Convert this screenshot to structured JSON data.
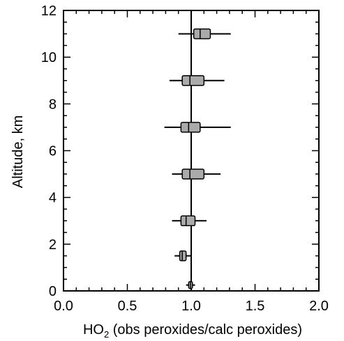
{
  "chart_data": {
    "type": "box",
    "title": "",
    "xlabel_main": "HO",
    "xlabel_sub": "2",
    "xlabel_rest": " (obs peroxides/calc peroxides)",
    "ylabel": "Altitude, km",
    "xlim": [
      0.0,
      2.0
    ],
    "ylim": [
      0,
      12
    ],
    "xticks": [
      0.0,
      0.5,
      1.0,
      1.5,
      2.0
    ],
    "xtick_labels": [
      "0.0",
      "0.5",
      "1.0",
      "1.5",
      "2.0"
    ],
    "yticks": [
      0,
      2,
      4,
      6,
      8,
      10,
      12
    ],
    "ytick_labels": [
      "0",
      "2",
      "4",
      "6",
      "8",
      "10",
      "12"
    ],
    "reference_line_x": 1.0,
    "grid": false,
    "box_color": "#aaaaaa",
    "boxes": [
      {
        "altitude": 11,
        "whisker_low": 0.9,
        "q1": 1.02,
        "median": 1.07,
        "q3": 1.15,
        "whisker_high": 1.31
      },
      {
        "altitude": 9,
        "whisker_low": 0.83,
        "q1": 0.93,
        "median": 0.99,
        "q3": 1.1,
        "whisker_high": 1.26
      },
      {
        "altitude": 7,
        "whisker_low": 0.79,
        "q1": 0.92,
        "median": 0.98,
        "q3": 1.07,
        "whisker_high": 1.31
      },
      {
        "altitude": 5,
        "whisker_low": 0.85,
        "q1": 0.93,
        "median": 0.99,
        "q3": 1.1,
        "whisker_high": 1.23
      },
      {
        "altitude": 3,
        "whisker_low": 0.85,
        "q1": 0.92,
        "median": 0.96,
        "q3": 1.03,
        "whisker_high": 1.12
      },
      {
        "altitude": 1.5,
        "whisker_low": 0.87,
        "q1": 0.91,
        "median": 0.93,
        "q3": 0.96,
        "whisker_high": 1.0
      },
      {
        "altitude": 0.25,
        "whisker_low": 0.96,
        "q1": 0.98,
        "median": 0.995,
        "q3": 1.01,
        "whisker_high": 1.03
      }
    ]
  }
}
